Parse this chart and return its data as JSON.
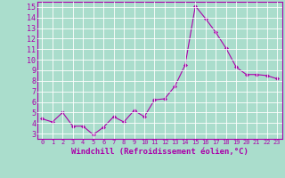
{
  "x": [
    0,
    1,
    2,
    3,
    4,
    5,
    6,
    7,
    8,
    9,
    10,
    11,
    12,
    13,
    14,
    15,
    16,
    17,
    18,
    19,
    20,
    21,
    22,
    23
  ],
  "y": [
    4.4,
    4.1,
    5.0,
    3.7,
    3.7,
    2.9,
    3.6,
    4.6,
    4.1,
    5.2,
    4.6,
    6.2,
    6.3,
    7.5,
    9.5,
    15.1,
    13.9,
    12.6,
    11.1,
    9.3,
    8.6,
    8.6,
    8.5,
    8.2
  ],
  "line_color": "#aa00aa",
  "marker": "D",
  "marker_size": 2,
  "xlabel": "Windchill (Refroidissement éolien,°C)",
  "xlabel_fontsize": 6.5,
  "bg_color": "#aaddcc",
  "grid_color": "#bbddcc",
  "tick_color": "#aa00aa",
  "label_color": "#aa00aa",
  "xlim": [
    -0.5,
    23.5
  ],
  "ylim": [
    2.5,
    15.5
  ],
  "yticks": [
    3,
    4,
    5,
    6,
    7,
    8,
    9,
    10,
    11,
    12,
    13,
    14,
    15
  ],
  "xticks": [
    0,
    1,
    2,
    3,
    4,
    5,
    6,
    7,
    8,
    9,
    10,
    11,
    12,
    13,
    14,
    15,
    16,
    17,
    18,
    19,
    20,
    21,
    22,
    23
  ],
  "ytick_fontsize": 6.0,
  "xtick_fontsize": 5.0
}
